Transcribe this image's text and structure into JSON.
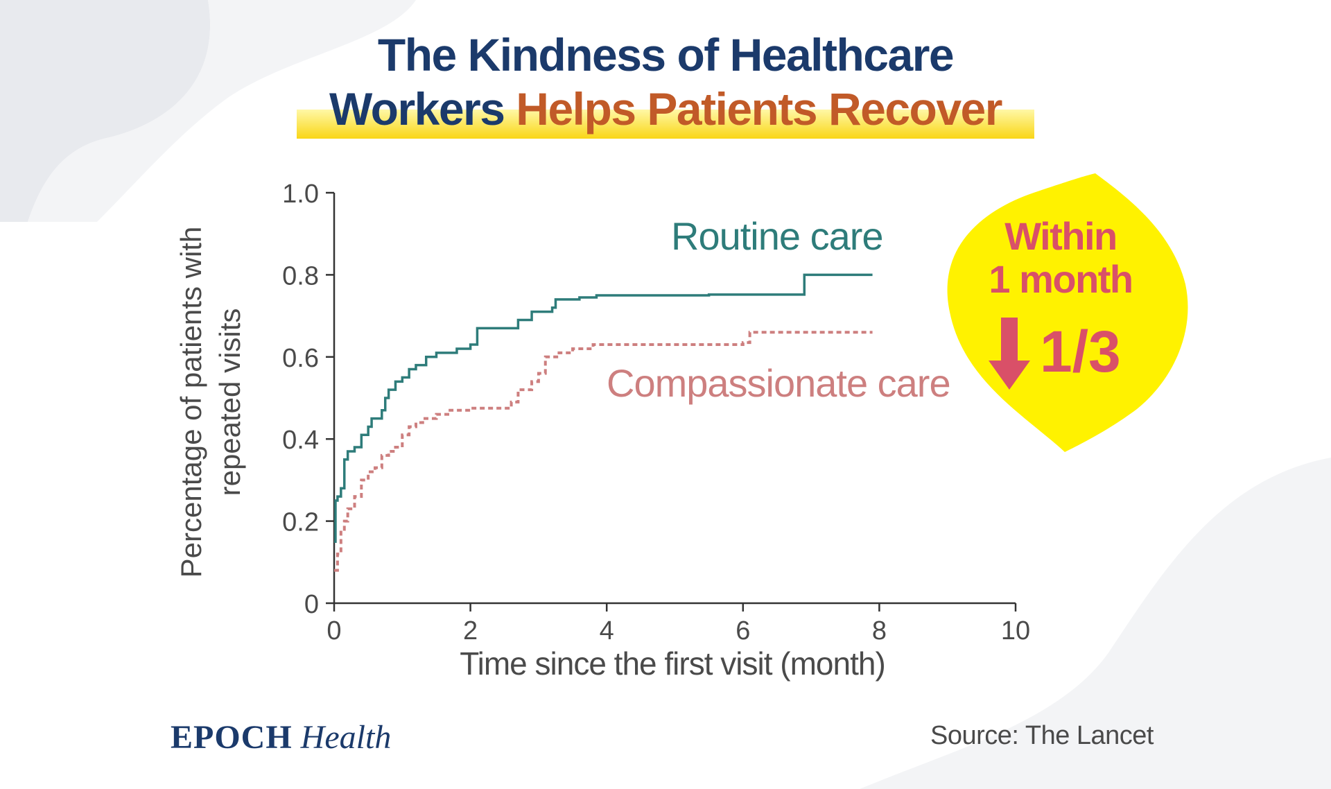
{
  "title": {
    "line1": "The Kindness of Healthcare",
    "line2_prefix": "Workers",
    "line2_accent": "Helps Patients Recover"
  },
  "badge": {
    "line1": "Within",
    "line2": "1 month",
    "fraction": "1/3",
    "arrow_icon": "down-arrow-icon",
    "color": "#d95068",
    "background": "#fff200"
  },
  "branding": {
    "logo_bold": "EPOCH",
    "logo_italic": "Health",
    "source": "Source: The Lancet"
  },
  "chart_data": {
    "type": "line",
    "title": "",
    "xlabel": "Time since the first visit (month)",
    "ylabel_line1": "Percentage of patients with",
    "ylabel_line2": "repeated visits",
    "xlim": [
      0,
      10
    ],
    "ylim": [
      0,
      1.0
    ],
    "x_ticks": [
      0,
      2,
      4,
      6,
      8,
      10
    ],
    "x_tick_labels": [
      "0",
      "2",
      "4",
      "6",
      "8",
      "10"
    ],
    "y_ticks": [
      0,
      0.2,
      0.4,
      0.6,
      0.8,
      1.0
    ],
    "y_tick_labels": [
      "0",
      "0.2",
      "0.4",
      "0.6",
      "0.8",
      "1.0"
    ],
    "grid": false,
    "step": true,
    "series": [
      {
        "name": "Routine care",
        "color": "#2e7c7a",
        "style": "solid",
        "x": [
          0,
          0.02,
          0.05,
          0.1,
          0.15,
          0.2,
          0.25,
          0.3,
          0.4,
          0.5,
          0.55,
          0.6,
          0.7,
          0.75,
          0.8,
          0.9,
          1.0,
          1.1,
          1.2,
          1.35,
          1.5,
          1.65,
          1.8,
          2.0,
          2.1,
          2.5,
          2.7,
          2.9,
          3.2,
          3.25,
          3.6,
          3.85,
          4.5,
          5.5,
          6.9,
          7.9
        ],
        "y": [
          0.15,
          0.25,
          0.26,
          0.28,
          0.35,
          0.37,
          0.37,
          0.38,
          0.41,
          0.43,
          0.45,
          0.45,
          0.47,
          0.5,
          0.52,
          0.54,
          0.55,
          0.57,
          0.58,
          0.6,
          0.61,
          0.61,
          0.62,
          0.63,
          0.67,
          0.67,
          0.69,
          0.71,
          0.72,
          0.74,
          0.745,
          0.75,
          0.75,
          0.752,
          0.8,
          0.8
        ]
      },
      {
        "name": "Compassionate care",
        "color": "#cd7f7f",
        "style": "dashed",
        "x": [
          0,
          0.05,
          0.1,
          0.15,
          0.2,
          0.3,
          0.4,
          0.5,
          0.6,
          0.7,
          0.8,
          0.9,
          1.0,
          1.1,
          1.2,
          1.3,
          1.5,
          1.7,
          2.0,
          2.4,
          2.6,
          2.7,
          2.9,
          3.0,
          3.1,
          3.3,
          3.5,
          3.8,
          4.5,
          6.0,
          6.1,
          7.9
        ],
        "y": [
          0.08,
          0.12,
          0.18,
          0.2,
          0.23,
          0.26,
          0.3,
          0.32,
          0.33,
          0.36,
          0.37,
          0.38,
          0.41,
          0.43,
          0.44,
          0.45,
          0.46,
          0.47,
          0.475,
          0.475,
          0.49,
          0.52,
          0.54,
          0.56,
          0.6,
          0.61,
          0.62,
          0.63,
          0.63,
          0.635,
          0.66,
          0.66
        ]
      }
    ]
  }
}
